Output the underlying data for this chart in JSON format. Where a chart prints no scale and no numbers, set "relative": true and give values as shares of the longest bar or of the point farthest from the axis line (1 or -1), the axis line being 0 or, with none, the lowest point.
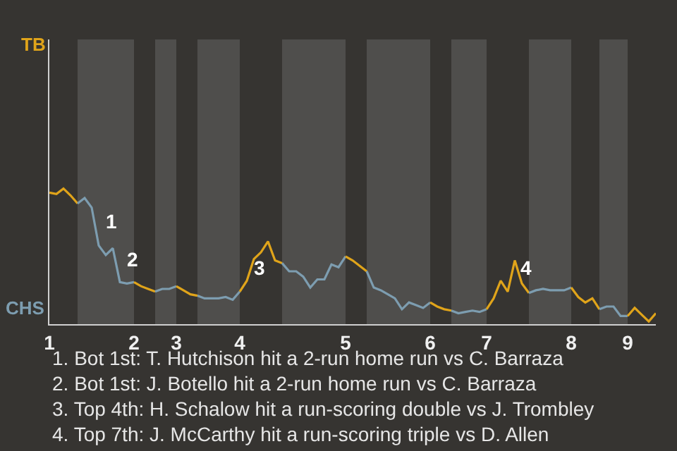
{
  "chart_data": {
    "type": "line",
    "relative": true,
    "categories": [
      "1",
      null,
      null,
      null,
      null,
      null,
      null,
      null,
      null,
      null,
      null,
      null,
      "2",
      null,
      null,
      null,
      null,
      null,
      "3",
      null,
      null,
      null,
      null,
      null,
      null,
      null,
      null,
      "4",
      null,
      null,
      null,
      null,
      null,
      null,
      null,
      null,
      null,
      null,
      null,
      null,
      null,
      null,
      "5",
      null,
      null,
      null,
      null,
      null,
      null,
      null,
      null,
      null,
      null,
      null,
      "6",
      null,
      null,
      null,
      null,
      null,
      null,
      null,
      "7",
      null,
      null,
      null,
      null,
      null,
      null,
      null,
      null,
      null,
      null,
      null,
      "8",
      null,
      null,
      null,
      null,
      null,
      null,
      null,
      "9",
      null,
      null,
      null,
      null
    ],
    "marker": "none",
    "line_style": "solid",
    "series": [
      {
        "color": "#e0a41a",
        "values": [
          0.97,
          0.96,
          1,
          0.95,
          0.89,
          null,
          null,
          null,
          null,
          null,
          null,
          null,
          null,
          null,
          null,
          null,
          null,
          null,
          null,
          null,
          null,
          null,
          null,
          null,
          null,
          null,
          null,
          null,
          null,
          null,
          null,
          null,
          null,
          null,
          null,
          null,
          null,
          null,
          null,
          null,
          null,
          null,
          null,
          null,
          null,
          null,
          null,
          null,
          null,
          null,
          null,
          null,
          null,
          null,
          null,
          null,
          null,
          null,
          null,
          null,
          null,
          null,
          null,
          null,
          null,
          null,
          null,
          null,
          null,
          null,
          null,
          null,
          null,
          null,
          null,
          null,
          null,
          null,
          null,
          null,
          null,
          null,
          null,
          null,
          null,
          null,
          null
        ]
      },
      {
        "color": "#7d9db0",
        "values": [
          null,
          null,
          null,
          null,
          0.89,
          0.93,
          0.86,
          0.58,
          0.51,
          0.56,
          0.31,
          0.3,
          0.31,
          null,
          null,
          null,
          null,
          null,
          null,
          null,
          null,
          null,
          null,
          null,
          null,
          null,
          null,
          null,
          null,
          null,
          null,
          null,
          null,
          null,
          null,
          null,
          null,
          null,
          null,
          null,
          null,
          null,
          null,
          null,
          null,
          null,
          null,
          null,
          null,
          null,
          null,
          null,
          null,
          null,
          null,
          null,
          null,
          null,
          null,
          null,
          null,
          null,
          null,
          null,
          null,
          null,
          null,
          null,
          null,
          null,
          null,
          null,
          null,
          null,
          null,
          null,
          null,
          null,
          null,
          null,
          null,
          null,
          null,
          null,
          null,
          null,
          null
        ]
      },
      {
        "color": "#e0a41a",
        "values": [
          null,
          null,
          null,
          null,
          null,
          null,
          null,
          null,
          null,
          null,
          null,
          null,
          0.31,
          0.28,
          0.26,
          0.24,
          null,
          null,
          null,
          null,
          null,
          null,
          null,
          null,
          null,
          null,
          null,
          null,
          null,
          null,
          null,
          null,
          null,
          null,
          null,
          null,
          null,
          null,
          null,
          null,
          null,
          null,
          null,
          null,
          null,
          null,
          null,
          null,
          null,
          null,
          null,
          null,
          null,
          null,
          null,
          null,
          null,
          null,
          null,
          null,
          null,
          null,
          null,
          null,
          null,
          null,
          null,
          null,
          null,
          null,
          null,
          null,
          null,
          null,
          null,
          null,
          null,
          null,
          null,
          null,
          null,
          null,
          null,
          null,
          null,
          null,
          null
        ]
      },
      {
        "color": "#7d9db0",
        "values": [
          null,
          null,
          null,
          null,
          null,
          null,
          null,
          null,
          null,
          null,
          null,
          null,
          null,
          null,
          null,
          0.24,
          0.26,
          0.26,
          0.28,
          null,
          null,
          null,
          null,
          null,
          null,
          null,
          null,
          null,
          null,
          null,
          null,
          null,
          null,
          null,
          null,
          null,
          null,
          null,
          null,
          null,
          null,
          null,
          null,
          null,
          null,
          null,
          null,
          null,
          null,
          null,
          null,
          null,
          null,
          null,
          null,
          null,
          null,
          null,
          null,
          null,
          null,
          null,
          null,
          null,
          null,
          null,
          null,
          null,
          null,
          null,
          null,
          null,
          null,
          null,
          null,
          null,
          null,
          null,
          null,
          null,
          null,
          null,
          null,
          null,
          null,
          null,
          null
        ]
      },
      {
        "color": "#e0a41a",
        "values": [
          null,
          null,
          null,
          null,
          null,
          null,
          null,
          null,
          null,
          null,
          null,
          null,
          null,
          null,
          null,
          null,
          null,
          null,
          0.28,
          0.25,
          0.22,
          0.21,
          null,
          null,
          null,
          null,
          null,
          null,
          null,
          null,
          null,
          null,
          null,
          null,
          null,
          null,
          null,
          null,
          null,
          null,
          null,
          null,
          null,
          null,
          null,
          null,
          null,
          null,
          null,
          null,
          null,
          null,
          null,
          null,
          null,
          null,
          null,
          null,
          null,
          null,
          null,
          null,
          null,
          null,
          null,
          null,
          null,
          null,
          null,
          null,
          null,
          null,
          null,
          null,
          null,
          null,
          null,
          null,
          null,
          null,
          null,
          null,
          null,
          null,
          null,
          null,
          null
        ]
      },
      {
        "color": "#7d9db0",
        "values": [
          null,
          null,
          null,
          null,
          null,
          null,
          null,
          null,
          null,
          null,
          null,
          null,
          null,
          null,
          null,
          null,
          null,
          null,
          null,
          null,
          null,
          0.21,
          0.19,
          0.19,
          0.19,
          0.2,
          0.18,
          0.24,
          null,
          null,
          null,
          null,
          null,
          null,
          null,
          null,
          null,
          null,
          null,
          null,
          null,
          null,
          null,
          null,
          null,
          null,
          null,
          null,
          null,
          null,
          null,
          null,
          null,
          null,
          null,
          null,
          null,
          null,
          null,
          null,
          null,
          null,
          null,
          null,
          null,
          null,
          null,
          null,
          null,
          null,
          null,
          null,
          null,
          null,
          null,
          null,
          null,
          null,
          null,
          null,
          null,
          null,
          null,
          null,
          null,
          null,
          null
        ]
      },
      {
        "color": "#e0a41a",
        "values": [
          null,
          null,
          null,
          null,
          null,
          null,
          null,
          null,
          null,
          null,
          null,
          null,
          null,
          null,
          null,
          null,
          null,
          null,
          null,
          null,
          null,
          null,
          null,
          null,
          null,
          null,
          null,
          0.24,
          0.32,
          0.48,
          0.53,
          0.61,
          0.47,
          0.45,
          null,
          null,
          null,
          null,
          null,
          null,
          null,
          null,
          null,
          null,
          null,
          null,
          null,
          null,
          null,
          null,
          null,
          null,
          null,
          null,
          null,
          null,
          null,
          null,
          null,
          null,
          null,
          null,
          null,
          null,
          null,
          null,
          null,
          null,
          null,
          null,
          null,
          null,
          null,
          null,
          null,
          null,
          null,
          null,
          null,
          null,
          null,
          null,
          null,
          null,
          null,
          null,
          null
        ]
      },
      {
        "color": "#7d9db0",
        "values": [
          null,
          null,
          null,
          null,
          null,
          null,
          null,
          null,
          null,
          null,
          null,
          null,
          null,
          null,
          null,
          null,
          null,
          null,
          null,
          null,
          null,
          null,
          null,
          null,
          null,
          null,
          null,
          null,
          null,
          null,
          null,
          null,
          null,
          0.45,
          0.39,
          0.39,
          0.35,
          0.27,
          0.33,
          0.33,
          0.44,
          0.42,
          0.5,
          null,
          null,
          null,
          null,
          null,
          null,
          null,
          null,
          null,
          null,
          null,
          null,
          null,
          null,
          null,
          null,
          null,
          null,
          null,
          null,
          null,
          null,
          null,
          null,
          null,
          null,
          null,
          null,
          null,
          null,
          null,
          null,
          null,
          null,
          null,
          null,
          null,
          null,
          null,
          null,
          null,
          null,
          null,
          null
        ]
      },
      {
        "color": "#e0a41a",
        "values": [
          null,
          null,
          null,
          null,
          null,
          null,
          null,
          null,
          null,
          null,
          null,
          null,
          null,
          null,
          null,
          null,
          null,
          null,
          null,
          null,
          null,
          null,
          null,
          null,
          null,
          null,
          null,
          null,
          null,
          null,
          null,
          null,
          null,
          null,
          null,
          null,
          null,
          null,
          null,
          null,
          null,
          null,
          0.5,
          0.47,
          0.43,
          0.39,
          null,
          null,
          null,
          null,
          null,
          null,
          null,
          null,
          null,
          null,
          null,
          null,
          null,
          null,
          null,
          null,
          null,
          null,
          null,
          null,
          null,
          null,
          null,
          null,
          null,
          null,
          null,
          null,
          null,
          null,
          null,
          null,
          null,
          null,
          null,
          null,
          null,
          null,
          null,
          null,
          null
        ]
      },
      {
        "color": "#7d9db0",
        "values": [
          null,
          null,
          null,
          null,
          null,
          null,
          null,
          null,
          null,
          null,
          null,
          null,
          null,
          null,
          null,
          null,
          null,
          null,
          null,
          null,
          null,
          null,
          null,
          null,
          null,
          null,
          null,
          null,
          null,
          null,
          null,
          null,
          null,
          null,
          null,
          null,
          null,
          null,
          null,
          null,
          null,
          null,
          null,
          null,
          null,
          0.39,
          0.27,
          0.25,
          0.22,
          0.19,
          0.11,
          0.16,
          0.14,
          0.12,
          0.16,
          null,
          null,
          null,
          null,
          null,
          null,
          null,
          null,
          null,
          null,
          null,
          null,
          null,
          null,
          null,
          null,
          null,
          null,
          null,
          null,
          null,
          null,
          null,
          null,
          null,
          null,
          null,
          null,
          null,
          null,
          null,
          null
        ]
      },
      {
        "color": "#e0a41a",
        "values": [
          null,
          null,
          null,
          null,
          null,
          null,
          null,
          null,
          null,
          null,
          null,
          null,
          null,
          null,
          null,
          null,
          null,
          null,
          null,
          null,
          null,
          null,
          null,
          null,
          null,
          null,
          null,
          null,
          null,
          null,
          null,
          null,
          null,
          null,
          null,
          null,
          null,
          null,
          null,
          null,
          null,
          null,
          null,
          null,
          null,
          null,
          null,
          null,
          null,
          null,
          null,
          null,
          null,
          null,
          0.16,
          0.13,
          0.11,
          0.1,
          null,
          null,
          null,
          null,
          null,
          null,
          null,
          null,
          null,
          null,
          null,
          null,
          null,
          null,
          null,
          null,
          null,
          null,
          null,
          null,
          null,
          null,
          null,
          null,
          null,
          null,
          null,
          null,
          null
        ]
      },
      {
        "color": "#7d9db0",
        "values": [
          null,
          null,
          null,
          null,
          null,
          null,
          null,
          null,
          null,
          null,
          null,
          null,
          null,
          null,
          null,
          null,
          null,
          null,
          null,
          null,
          null,
          null,
          null,
          null,
          null,
          null,
          null,
          null,
          null,
          null,
          null,
          null,
          null,
          null,
          null,
          null,
          null,
          null,
          null,
          null,
          null,
          null,
          null,
          null,
          null,
          null,
          null,
          null,
          null,
          null,
          null,
          null,
          null,
          null,
          null,
          null,
          null,
          0.1,
          0.08,
          0.09,
          0.1,
          0.09,
          0.11,
          null,
          null,
          null,
          null,
          null,
          null,
          null,
          null,
          null,
          null,
          null,
          null,
          null,
          null,
          null,
          null,
          null,
          null,
          null,
          null,
          null,
          null,
          null,
          null
        ]
      },
      {
        "color": "#e0a41a",
        "values": [
          null,
          null,
          null,
          null,
          null,
          null,
          null,
          null,
          null,
          null,
          null,
          null,
          null,
          null,
          null,
          null,
          null,
          null,
          null,
          null,
          null,
          null,
          null,
          null,
          null,
          null,
          null,
          null,
          null,
          null,
          null,
          null,
          null,
          null,
          null,
          null,
          null,
          null,
          null,
          null,
          null,
          null,
          null,
          null,
          null,
          null,
          null,
          null,
          null,
          null,
          null,
          null,
          null,
          null,
          null,
          null,
          null,
          null,
          null,
          null,
          null,
          null,
          0.11,
          0.19,
          0.32,
          0.24,
          0.47,
          0.3,
          0.23,
          null,
          null,
          null,
          null,
          null,
          null,
          null,
          null,
          null,
          null,
          null,
          null,
          null,
          null,
          null,
          null,
          null,
          null
        ]
      },
      {
        "color": "#7d9db0",
        "values": [
          null,
          null,
          null,
          null,
          null,
          null,
          null,
          null,
          null,
          null,
          null,
          null,
          null,
          null,
          null,
          null,
          null,
          null,
          null,
          null,
          null,
          null,
          null,
          null,
          null,
          null,
          null,
          null,
          null,
          null,
          null,
          null,
          null,
          null,
          null,
          null,
          null,
          null,
          null,
          null,
          null,
          null,
          null,
          null,
          null,
          null,
          null,
          null,
          null,
          null,
          null,
          null,
          null,
          null,
          null,
          null,
          null,
          null,
          null,
          null,
          null,
          null,
          null,
          null,
          null,
          null,
          null,
          null,
          0.23,
          0.25,
          0.26,
          0.25,
          0.25,
          0.25,
          0.27,
          null,
          null,
          null,
          null,
          null,
          null,
          null,
          null,
          null,
          null,
          null,
          null
        ]
      },
      {
        "color": "#e0a41a",
        "values": [
          null,
          null,
          null,
          null,
          null,
          null,
          null,
          null,
          null,
          null,
          null,
          null,
          null,
          null,
          null,
          null,
          null,
          null,
          null,
          null,
          null,
          null,
          null,
          null,
          null,
          null,
          null,
          null,
          null,
          null,
          null,
          null,
          null,
          null,
          null,
          null,
          null,
          null,
          null,
          null,
          null,
          null,
          null,
          null,
          null,
          null,
          null,
          null,
          null,
          null,
          null,
          null,
          null,
          null,
          null,
          null,
          null,
          null,
          null,
          null,
          null,
          null,
          null,
          null,
          null,
          null,
          null,
          null,
          null,
          null,
          null,
          null,
          null,
          null,
          0.27,
          0.2,
          0.16,
          0.19,
          0.11,
          null,
          null,
          null,
          null,
          null,
          null,
          null,
          null
        ]
      },
      {
        "color": "#7d9db0",
        "values": [
          null,
          null,
          null,
          null,
          null,
          null,
          null,
          null,
          null,
          null,
          null,
          null,
          null,
          null,
          null,
          null,
          null,
          null,
          null,
          null,
          null,
          null,
          null,
          null,
          null,
          null,
          null,
          null,
          null,
          null,
          null,
          null,
          null,
          null,
          null,
          null,
          null,
          null,
          null,
          null,
          null,
          null,
          null,
          null,
          null,
          null,
          null,
          null,
          null,
          null,
          null,
          null,
          null,
          null,
          null,
          null,
          null,
          null,
          null,
          null,
          null,
          null,
          null,
          null,
          null,
          null,
          null,
          null,
          null,
          null,
          null,
          null,
          null,
          null,
          null,
          null,
          null,
          null,
          0.11,
          0.13,
          0.13,
          0.06,
          0.06,
          null,
          null,
          null,
          null
        ]
      },
      {
        "color": "#e0a41a",
        "values": [
          null,
          null,
          null,
          null,
          null,
          null,
          null,
          null,
          null,
          null,
          null,
          null,
          null,
          null,
          null,
          null,
          null,
          null,
          null,
          null,
          null,
          null,
          null,
          null,
          null,
          null,
          null,
          null,
          null,
          null,
          null,
          null,
          null,
          null,
          null,
          null,
          null,
          null,
          null,
          null,
          null,
          null,
          null,
          null,
          null,
          null,
          null,
          null,
          null,
          null,
          null,
          null,
          null,
          null,
          null,
          null,
          null,
          null,
          null,
          null,
          null,
          null,
          null,
          null,
          null,
          null,
          null,
          null,
          null,
          null,
          null,
          null,
          null,
          null,
          null,
          null,
          null,
          null,
          null,
          null,
          null,
          null,
          0.06,
          0.12,
          0.07,
          0.02,
          0.08
        ]
      }
    ],
    "annotations": [
      "TB",
      "CHS",
      "1",
      "2",
      "3",
      "4",
      "1. Bot 1st: T. Hutchison hit a 2-run home run vs C. Barraza",
      "2. Bot 1st: J. Botello hit a 2-run home run vs C. Barraza",
      "3. Top 4th: H. Schalow hit a run-scoring double vs J. Trombley",
      "4. Top 7th: J. McCarthy hit a run-scoring triple vs D. Allen"
    ]
  }
}
